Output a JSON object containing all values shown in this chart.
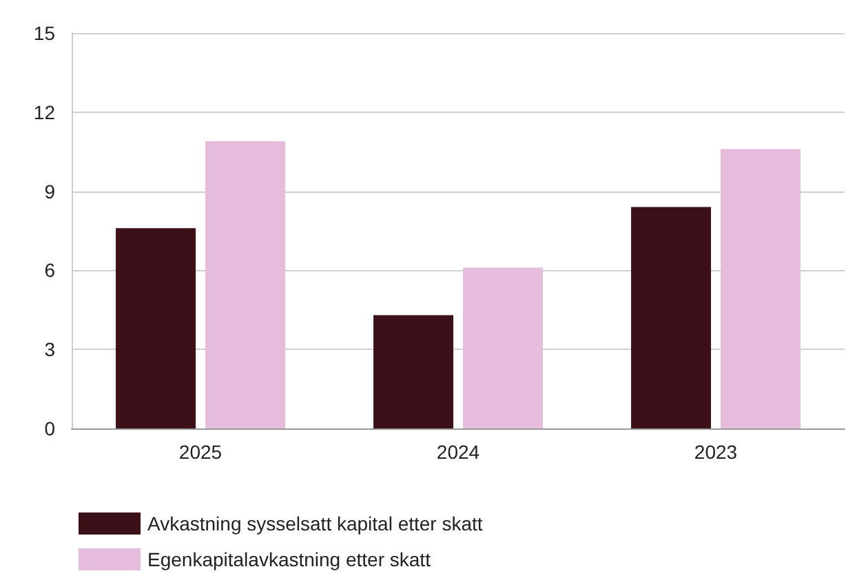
{
  "chart_data": {
    "type": "bar",
    "categories": [
      "2025",
      "2024",
      "2023"
    ],
    "series": [
      {
        "name": "Avkastning sysselsatt kapital etter skatt",
        "color": "#3b1018",
        "values": [
          7.6,
          4.3,
          8.4
        ]
      },
      {
        "name": "Egenkapitalavkastning etter skatt",
        "color": "#e6bcdc",
        "values": [
          10.9,
          6.1,
          10.6
        ]
      }
    ],
    "ylim": [
      0,
      15
    ],
    "yticks": [
      0,
      3,
      6,
      9,
      12,
      15
    ],
    "grid": "y",
    "legend": "bottom left"
  }
}
